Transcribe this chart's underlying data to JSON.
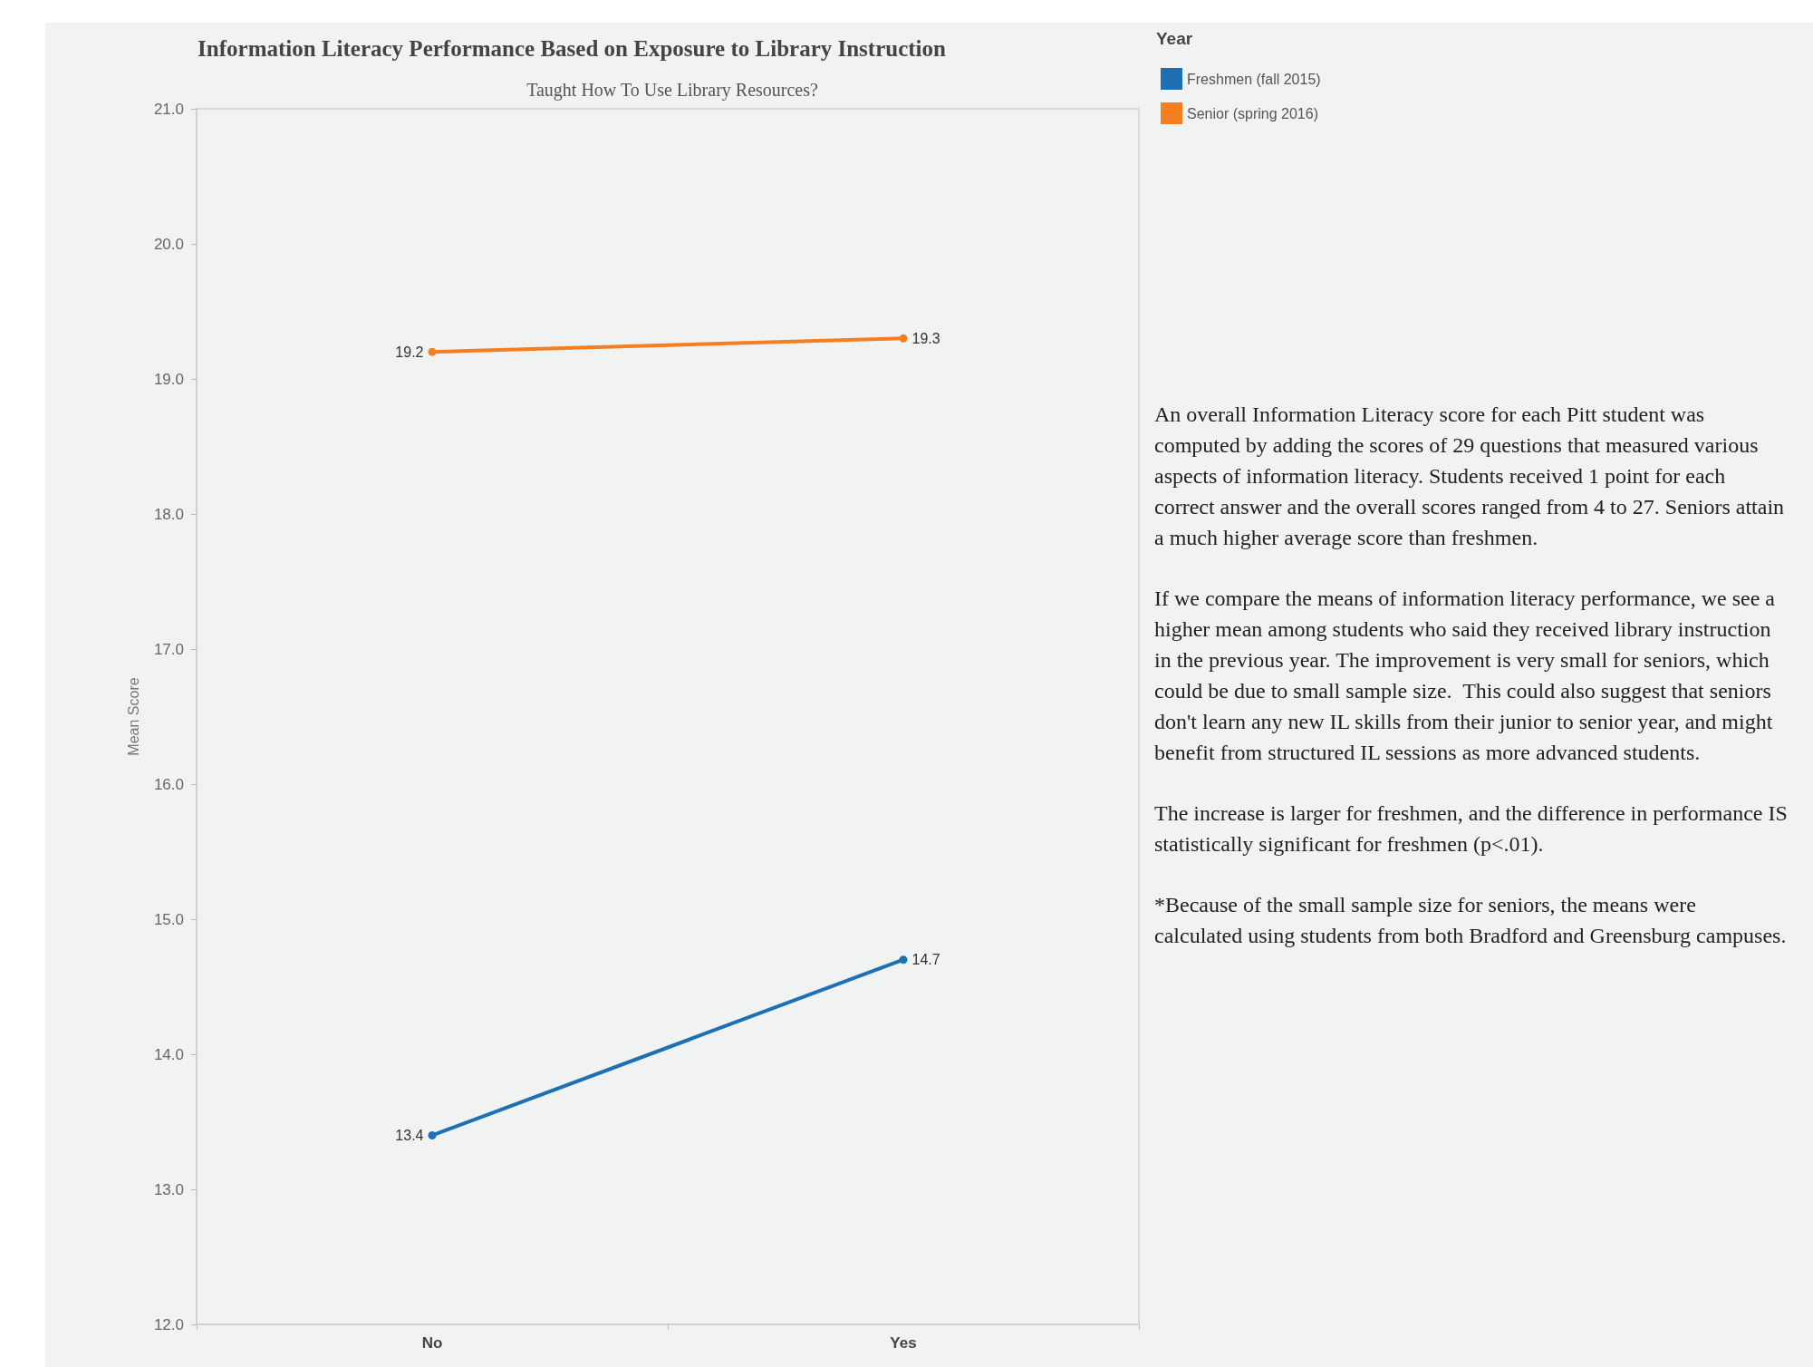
{
  "chart_data": {
    "type": "line",
    "title": "Information Literacy Performance Based on Exposure to Library Instruction",
    "subtitle": "Taught How To Use Library Resources?",
    "ylabel": "Mean Score",
    "legend_title": "Year",
    "categories": [
      "No",
      "Yes"
    ],
    "series": [
      {
        "name": "Freshmen (fall 2015)",
        "color": "#1f6fb5",
        "values": [
          13.4,
          14.7
        ]
      },
      {
        "name": "Senior (spring 2016)",
        "color": "#f57f20",
        "values": [
          19.2,
          19.3
        ]
      }
    ],
    "ylim": [
      12,
      21
    ],
    "yticks": [
      {
        "value": 12,
        "label": "12.0"
      },
      {
        "value": 13,
        "label": "13.0"
      },
      {
        "value": 14,
        "label": "14.0"
      },
      {
        "value": 15,
        "label": "15.0"
      },
      {
        "value": 16,
        "label": "16.0"
      },
      {
        "value": 17,
        "label": "17.0"
      },
      {
        "value": 18,
        "label": "18.0"
      },
      {
        "value": 19,
        "label": "19.0"
      },
      {
        "value": 20,
        "label": "20.0"
      },
      {
        "value": 21,
        "label": "21.0"
      }
    ],
    "grid": false,
    "legend": "top right",
    "marker": "circle",
    "line_style": "solid",
    "data_labels": true,
    "annotations": [
      "An overall Information Literacy score for each Pitt student was computed by adding the scores of 29 questions that measured various aspects of information literacy. Students received 1 point for each correct answer and the overall scores ranged from 4 to 27. Seniors attain a much higher average score than freshmen.",
      "If we compare the means of information literacy performance, we see a higher mean among students who said they received library instruction in the previous year. The improvement is very small for seniors, which could be due to small sample size.  This could also suggest that seniors don't learn any new IL skills from their junior to senior year, and might benefit from structured IL sessions as more advanced students.",
      "The increase is larger for freshmen, and the difference in performance IS statistically significant for freshmen (p<.01).",
      "*Because of the small sample size for seniors, the means were calculated using students from both Bradford and Greensburg campuses."
    ]
  }
}
